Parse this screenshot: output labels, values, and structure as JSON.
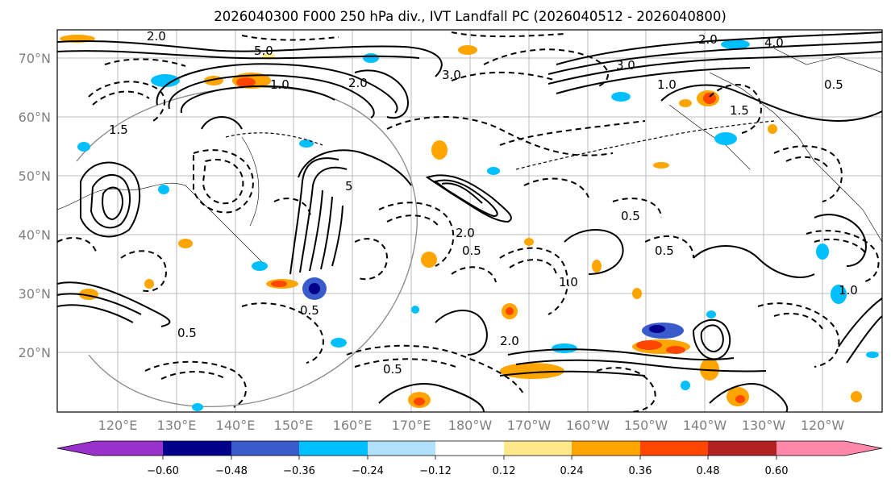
{
  "title": "2026040300 F000 250 hPa div., IVT Landfall PC (2026040512 - 2026040800)",
  "map": {
    "lat_labels": [
      "70°N",
      "60°N",
      "50°N",
      "40°N",
      "30°N",
      "20°N"
    ],
    "lon_labels": [
      "120°E",
      "130°E",
      "140°E",
      "150°E",
      "160°E",
      "170°E",
      "180°W",
      "170°W",
      "160°W",
      "150°W",
      "140°W",
      "130°W",
      "120°W"
    ],
    "contour_labels": [
      "2.0",
      "5.0",
      "3.0",
      "2.0",
      "4.0",
      "3.0",
      "1.0",
      "1.5",
      "0.5",
      "1.5",
      "1.0",
      "5",
      "2.0",
      "0.5",
      "0.5",
      "1.0",
      "0.5",
      "0.5",
      "0.5",
      "2.0",
      "0.5",
      "1.0",
      "2.0"
    ]
  },
  "colorbar": {
    "ticks": [
      "−0.60",
      "−0.48",
      "−0.36",
      "−0.24",
      "−0.12",
      "0.12",
      "0.24",
      "0.36",
      "0.48",
      "0.60"
    ],
    "colors": [
      "#9932cc",
      "#00008b",
      "#3a5bcc",
      "#00bfff",
      "#b0e0fa",
      "#ffffff",
      "#ffe98a",
      "#ffa500",
      "#ff4500",
      "#b22222",
      "#ff88aa"
    ]
  },
  "colors": {
    "contour": "#000000",
    "axis_label": "#808080",
    "grid": "#aaaaaa"
  }
}
